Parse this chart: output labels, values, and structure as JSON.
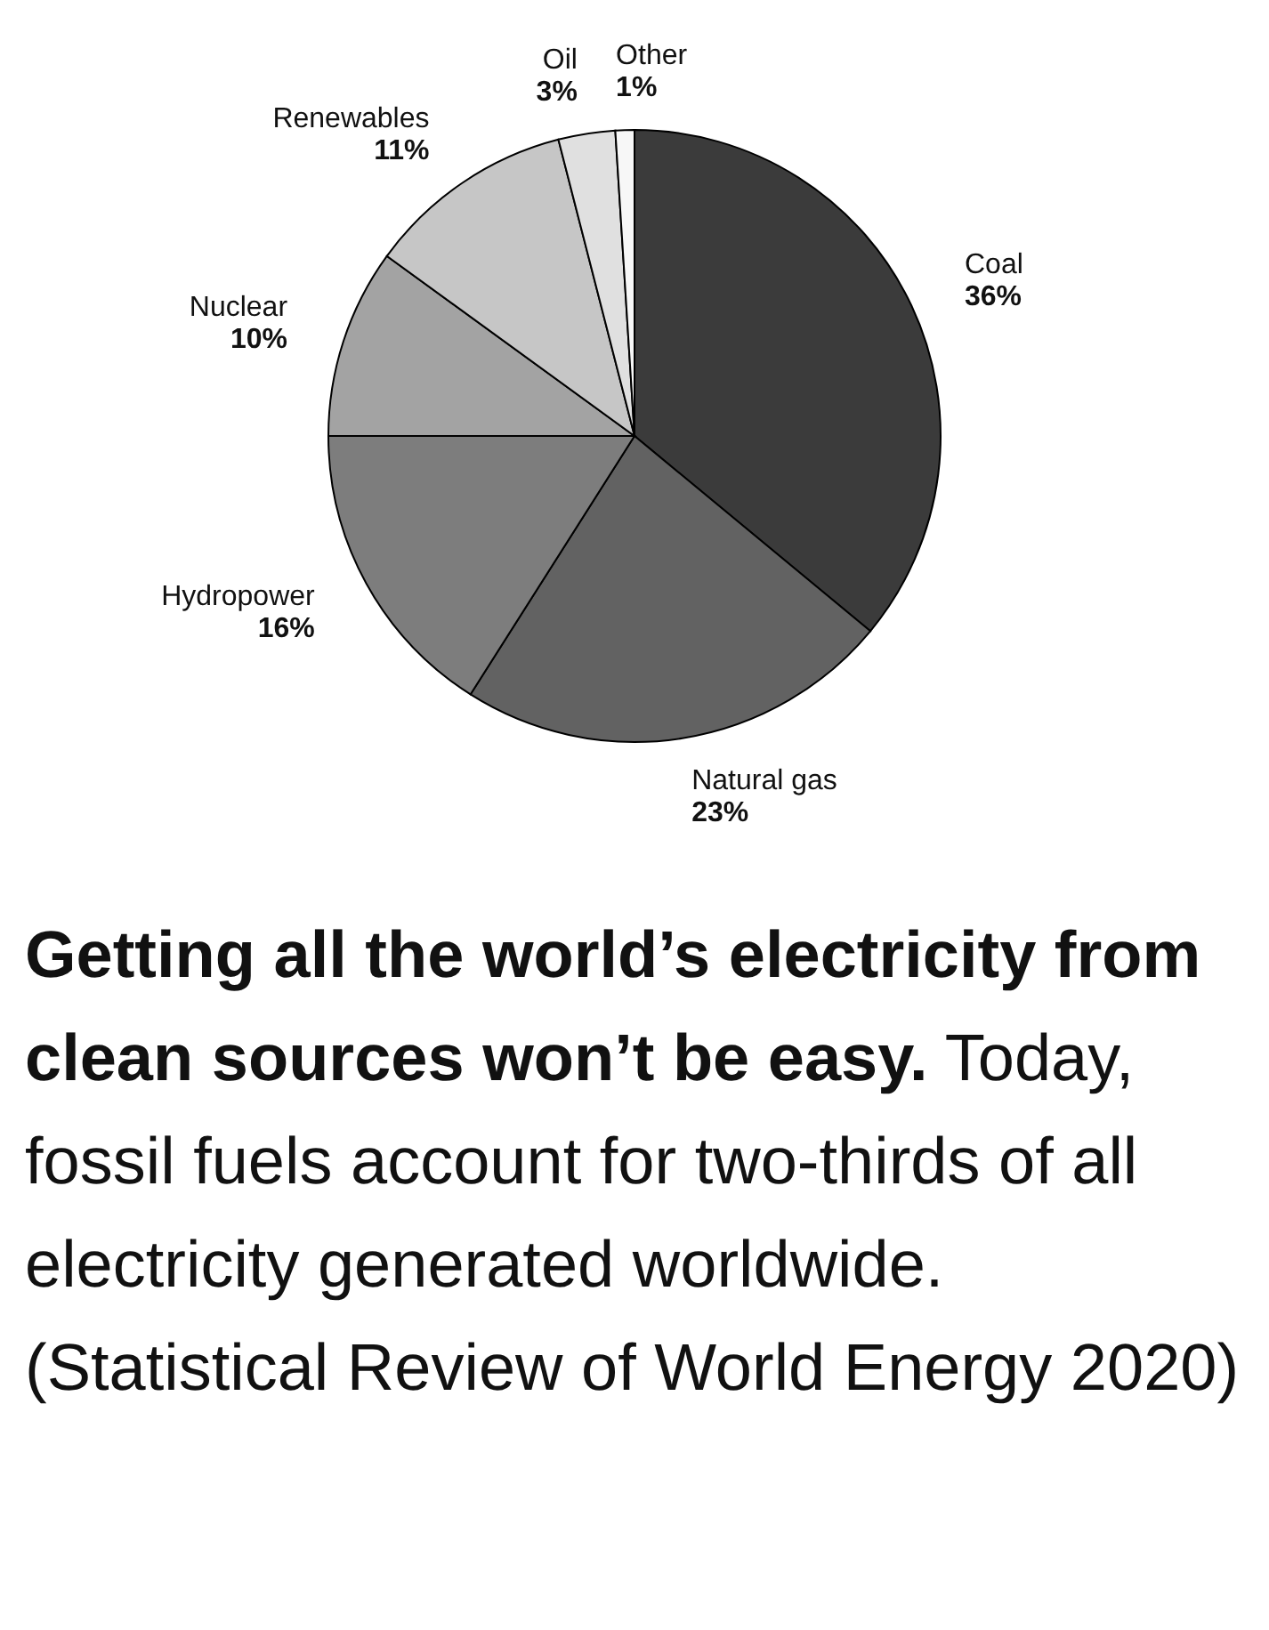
{
  "chart_data": {
    "type": "pie",
    "title": "Getting all the world’s electricity from clean sources won’t be easy.",
    "subtitle": "Today, fossil fuels account for two-thirds of all electricity generated worldwide.",
    "annotations": [
      "(Statistical Review of World Energy 2020)"
    ],
    "categories": [
      "Coal",
      "Natural gas",
      "Hydropower",
      "Nuclear",
      "Renewables",
      "Oil",
      "Other"
    ],
    "values": [
      36,
      23,
      16,
      10,
      11,
      3,
      1
    ],
    "value_labels": [
      "36%",
      "23%",
      "16%",
      "10%",
      "11%",
      "3%",
      "1%"
    ],
    "colors": [
      "#3b3b3b",
      "#626262",
      "#7d7d7d",
      "#a3a3a3",
      "#c6c6c6",
      "#e0e0e0",
      "#f7f7f7"
    ]
  }
}
